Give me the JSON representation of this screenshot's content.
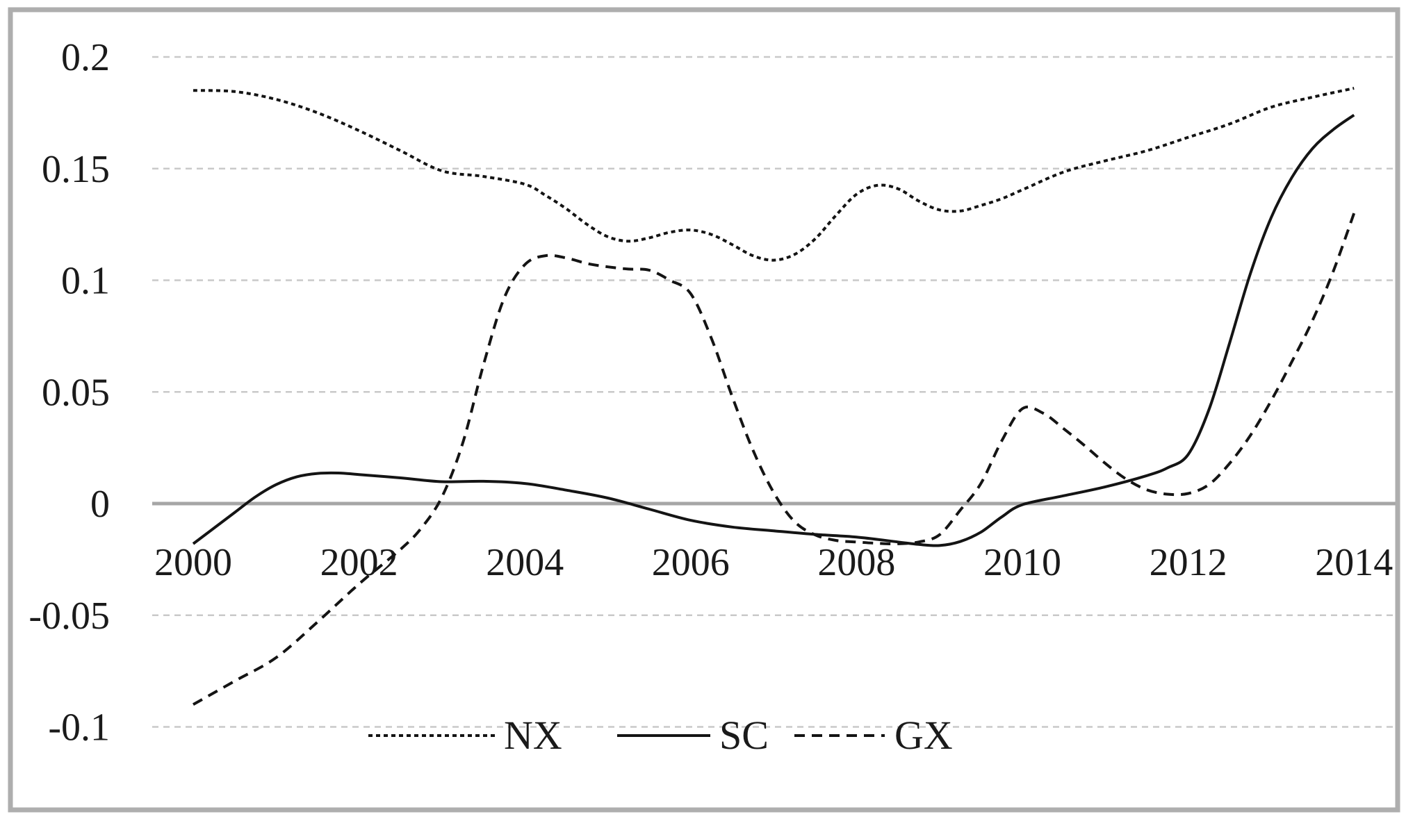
{
  "figure": {
    "kind": "excel-style-line-chart",
    "title": "",
    "background_color": "#ffffff",
    "border_color": "#aeaeae"
  },
  "colors": {
    "series_stroke": "#141414",
    "gridline": "#c9c9c9",
    "zero_line": "#a6a6a6",
    "tick_text": "#1a1a1a"
  },
  "chart_data": {
    "type": "line",
    "title": "",
    "xlabel": "",
    "ylabel": "",
    "xlim": [
      2000,
      2014
    ],
    "ylim": [
      -0.1,
      0.2
    ],
    "grid": "horizontal dashed gridlines, solid gray zero line, no vertical gridlines",
    "legend_position": "bottom-center",
    "x_ticks": [
      2000,
      2002,
      2004,
      2006,
      2008,
      2010,
      2012,
      2014
    ],
    "y_ticks": [
      {
        "label": "0.2",
        "value": 0.2
      },
      {
        "label": "0.15",
        "value": 0.15
      },
      {
        "label": "0.1",
        "value": 0.1
      },
      {
        "label": "0.05",
        "value": 0.05
      },
      {
        "label": "0",
        "value": 0
      },
      {
        "label": "-0.05",
        "value": -0.05
      },
      {
        "label": "-0.1",
        "value": -0.1
      }
    ],
    "series": [
      {
        "name": "NX",
        "line_style": "fine-dotted",
        "points": [
          [
            2000,
            0.185
          ],
          [
            2000.5,
            0.1845
          ],
          [
            2001,
            0.181
          ],
          [
            2001.5,
            0.175
          ],
          [
            2002,
            0.167
          ],
          [
            2002.5,
            0.158
          ],
          [
            2003,
            0.149
          ],
          [
            2003.5,
            0.1465
          ],
          [
            2004,
            0.143
          ],
          [
            2004.25,
            0.138
          ],
          [
            2004.5,
            0.132
          ],
          [
            2004.75,
            0.125
          ],
          [
            2005,
            0.1195
          ],
          [
            2005.25,
            0.1175
          ],
          [
            2005.5,
            0.119
          ],
          [
            2005.75,
            0.1215
          ],
          [
            2006,
            0.1225
          ],
          [
            2006.25,
            0.1205
          ],
          [
            2006.5,
            0.116
          ],
          [
            2006.75,
            0.111
          ],
          [
            2007,
            0.109
          ],
          [
            2007.25,
            0.1115
          ],
          [
            2007.5,
            0.1185
          ],
          [
            2007.75,
            0.129
          ],
          [
            2008,
            0.1385
          ],
          [
            2008.25,
            0.1425
          ],
          [
            2008.5,
            0.141
          ],
          [
            2008.75,
            0.1355
          ],
          [
            2009,
            0.1315
          ],
          [
            2009.25,
            0.131
          ],
          [
            2009.5,
            0.1335
          ],
          [
            2009.75,
            0.1365
          ],
          [
            2010,
            0.1405
          ],
          [
            2010.5,
            0.1485
          ],
          [
            2011,
            0.1535
          ],
          [
            2011.5,
            0.158
          ],
          [
            2012,
            0.164
          ],
          [
            2012.5,
            0.17
          ],
          [
            2013,
            0.1775
          ],
          [
            2013.5,
            0.182
          ],
          [
            2014,
            0.186
          ]
        ]
      },
      {
        "name": "SC",
        "line_style": "solid",
        "points": [
          [
            2000,
            -0.018
          ],
          [
            2000.25,
            -0.011
          ],
          [
            2000.5,
            -0.004
          ],
          [
            2000.75,
            0.003
          ],
          [
            2001,
            0.0085
          ],
          [
            2001.25,
            0.012
          ],
          [
            2001.5,
            0.0135
          ],
          [
            2001.75,
            0.0137
          ],
          [
            2002,
            0.013
          ],
          [
            2002.5,
            0.0115
          ],
          [
            2003,
            0.0098
          ],
          [
            2003.5,
            0.01
          ],
          [
            2004,
            0.009
          ],
          [
            2004.5,
            0.006
          ],
          [
            2005,
            0.0025
          ],
          [
            2005.5,
            -0.0025
          ],
          [
            2006,
            -0.0075
          ],
          [
            2006.5,
            -0.0105
          ],
          [
            2007,
            -0.0122
          ],
          [
            2007.5,
            -0.0138
          ],
          [
            2008,
            -0.015
          ],
          [
            2008.5,
            -0.0172
          ],
          [
            2008.75,
            -0.0183
          ],
          [
            2009,
            -0.0188
          ],
          [
            2009.25,
            -0.017
          ],
          [
            2009.5,
            -0.0128
          ],
          [
            2009.75,
            -0.006
          ],
          [
            2010,
            -0.0005
          ],
          [
            2010.5,
            0.0035
          ],
          [
            2011,
            0.0075
          ],
          [
            2011.5,
            0.0125
          ],
          [
            2011.75,
            0.016
          ],
          [
            2012,
            0.022
          ],
          [
            2012.25,
            0.042
          ],
          [
            2012.5,
            0.072
          ],
          [
            2012.75,
            0.103
          ],
          [
            2013,
            0.128
          ],
          [
            2013.25,
            0.146
          ],
          [
            2013.5,
            0.159
          ],
          [
            2013.75,
            0.1675
          ],
          [
            2014,
            0.174
          ]
        ]
      },
      {
        "name": "GX",
        "line_style": "dashed",
        "points": [
          [
            2000,
            -0.09
          ],
          [
            2000.5,
            -0.0795
          ],
          [
            2001,
            -0.069
          ],
          [
            2001.5,
            -0.053
          ],
          [
            2002,
            -0.036
          ],
          [
            2002.5,
            -0.0205
          ],
          [
            2002.75,
            -0.011
          ],
          [
            2003,
            0.003
          ],
          [
            2003.25,
            0.027
          ],
          [
            2003.5,
            0.062
          ],
          [
            2003.75,
            0.092
          ],
          [
            2004,
            0.107
          ],
          [
            2004.25,
            0.111
          ],
          [
            2004.5,
            0.11
          ],
          [
            2004.75,
            0.1075
          ],
          [
            2005,
            0.106
          ],
          [
            2005.25,
            0.105
          ],
          [
            2005.5,
            0.1045
          ],
          [
            2005.75,
            0.1
          ],
          [
            2006,
            0.094
          ],
          [
            2006.25,
            0.074
          ],
          [
            2006.5,
            0.048
          ],
          [
            2006.75,
            0.024
          ],
          [
            2007,
            0.005
          ],
          [
            2007.25,
            -0.008
          ],
          [
            2007.5,
            -0.014
          ],
          [
            2007.75,
            -0.0165
          ],
          [
            2008,
            -0.0172
          ],
          [
            2008.25,
            -0.0178
          ],
          [
            2008.5,
            -0.018
          ],
          [
            2008.75,
            -0.0172
          ],
          [
            2009,
            -0.014
          ],
          [
            2009.25,
            -0.003
          ],
          [
            2009.5,
            0.009
          ],
          [
            2009.75,
            0.028
          ],
          [
            2010,
            0.0425
          ],
          [
            2010.25,
            0.0405
          ],
          [
            2010.5,
            0.0335
          ],
          [
            2010.75,
            0.026
          ],
          [
            2011,
            0.018
          ],
          [
            2011.25,
            0.011
          ],
          [
            2011.5,
            0.0062
          ],
          [
            2011.75,
            0.0042
          ],
          [
            2012,
            0.0045
          ],
          [
            2012.25,
            0.0085
          ],
          [
            2012.5,
            0.018
          ],
          [
            2012.75,
            0.0305
          ],
          [
            2013,
            0.046
          ],
          [
            2013.25,
            0.0635
          ],
          [
            2013.5,
            0.082
          ],
          [
            2013.75,
            0.104
          ],
          [
            2014,
            0.13
          ]
        ]
      }
    ]
  },
  "legend": {
    "entries": [
      {
        "label": "NX",
        "line_style": "fine-dotted"
      },
      {
        "label": "SC",
        "line_style": "solid"
      },
      {
        "label": "GX",
        "line_style": "dashed"
      }
    ]
  }
}
